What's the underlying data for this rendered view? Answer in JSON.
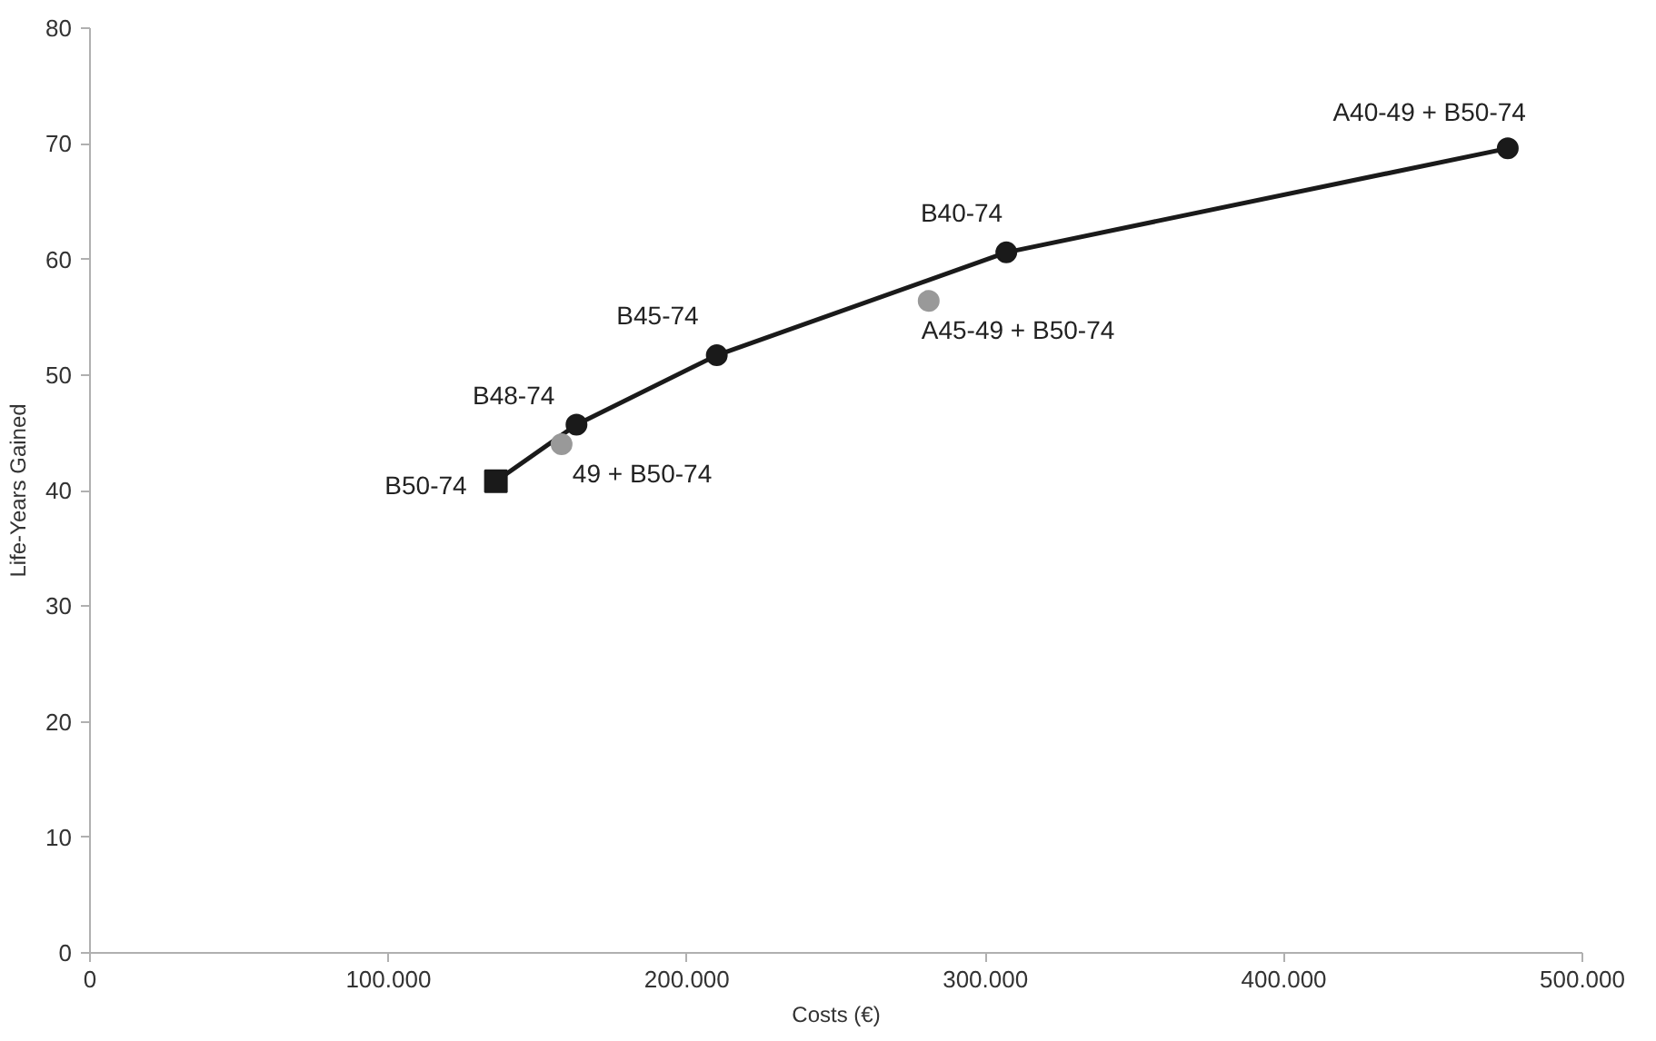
{
  "chart_data": {
    "type": "scatter",
    "xlabel": "Costs (€)",
    "ylabel": "Life-Years Gained",
    "xlim": [
      0,
      500000
    ],
    "ylim": [
      0,
      80
    ],
    "xticks": [
      {
        "value": 0,
        "label": "0"
      },
      {
        "value": 100000,
        "label": "100.000"
      },
      {
        "value": 200000,
        "label": "200.000"
      },
      {
        "value": 300000,
        "label": "300.000"
      },
      {
        "value": 400000,
        "label": "400.000"
      },
      {
        "value": 500000,
        "label": "500.000"
      }
    ],
    "yticks": [
      0,
      10,
      20,
      30,
      40,
      50,
      60,
      70,
      80
    ],
    "grid": false,
    "series": [
      {
        "type": "line",
        "color": "#1a1a1a",
        "marker": "none",
        "line_style": "solid",
        "x": [
          136000,
          163000,
          210000,
          307000,
          475000
        ],
        "values": [
          40.8,
          45.7,
          51.7,
          60.6,
          69.6
        ]
      },
      {
        "color": "#1a1a1a",
        "marker": "square",
        "x": [
          136000
        ],
        "values": [
          40.8
        ]
      },
      {
        "color": "#1a1a1a",
        "marker": "circle",
        "x": [
          163000,
          210000,
          307000,
          475000
        ],
        "values": [
          45.7,
          51.7,
          60.6,
          69.6
        ]
      },
      {
        "color": "#999999",
        "marker": "circle",
        "x": [
          158000,
          281000
        ],
        "values": [
          44.0,
          56.4
        ]
      }
    ],
    "annotations": [
      {
        "text": "B50-74",
        "x": 136000,
        "y": 40.8
      },
      {
        "text": "49 + B50-74",
        "x": 158000,
        "y": 44.0
      },
      {
        "text": "B48-74",
        "x": 163000,
        "y": 45.7
      },
      {
        "text": "B45-74",
        "x": 210000,
        "y": 51.7
      },
      {
        "text": "B40-74",
        "x": 307000,
        "y": 60.6
      },
      {
        "text": "A45-49 + B50-74",
        "x": 281000,
        "y": 56.4
      },
      {
        "text": "A40-49 + B50-74",
        "x": 475000,
        "y": 69.6
      }
    ]
  }
}
